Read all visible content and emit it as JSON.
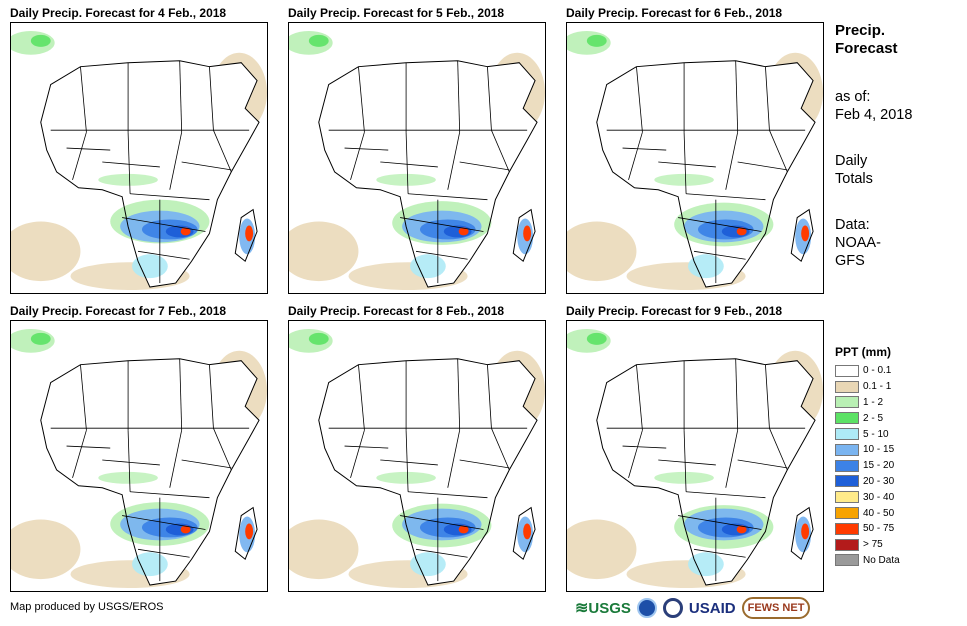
{
  "panels": [
    {
      "title": "Daily Precip. Forecast for 4 Feb., 2018"
    },
    {
      "title": "Daily Precip. Forecast for 5 Feb., 2018"
    },
    {
      "title": "Daily Precip. Forecast for 6 Feb., 2018"
    },
    {
      "title": "Daily Precip. Forecast for 7 Feb., 2018"
    },
    {
      "title": "Daily Precip. Forecast for 8 Feb., 2018"
    },
    {
      "title": "Daily Precip. Forecast for 9 Feb., 2018"
    }
  ],
  "side": {
    "title_line1": "Precip.",
    "title_line2": "Forecast",
    "asof_label": "as of:",
    "asof_date": "Feb 4, 2018",
    "totals_line1": "Daily",
    "totals_line2": "Totals",
    "data_label": "Data:",
    "data_line1": "NOAA-",
    "data_line2": "GFS"
  },
  "legend": {
    "title": "PPT (mm)",
    "items": [
      {
        "label": "0 - 0.1",
        "color": "#ffffff"
      },
      {
        "label": "0.1 - 1",
        "color": "#e9d7b5"
      },
      {
        "label": "1 - 2",
        "color": "#b9f0b4"
      },
      {
        "label": "2 - 5",
        "color": "#5ce265"
      },
      {
        "label": "5 - 10",
        "color": "#aeeaf6"
      },
      {
        "label": "10 - 15",
        "color": "#7ab4f0"
      },
      {
        "label": "15 - 20",
        "color": "#3c82e6"
      },
      {
        "label": "20 - 30",
        "color": "#1e5fd8"
      },
      {
        "label": "30 - 40",
        "color": "#ffeb8a"
      },
      {
        "label": "40 - 50",
        "color": "#f7a300"
      },
      {
        "label": "50 - 75",
        "color": "#ff3b00"
      },
      {
        "label": "> 75",
        "color": "#b31b1b"
      },
      {
        "label": "No Data",
        "color": "#9a9a9a"
      }
    ]
  },
  "footer": {
    "credit": "Map produced by USGS/EROS"
  },
  "logos": {
    "usgs": "USGS",
    "noaa": "NOAA",
    "usaid": "USAID",
    "fews": "FEWS NET"
  }
}
